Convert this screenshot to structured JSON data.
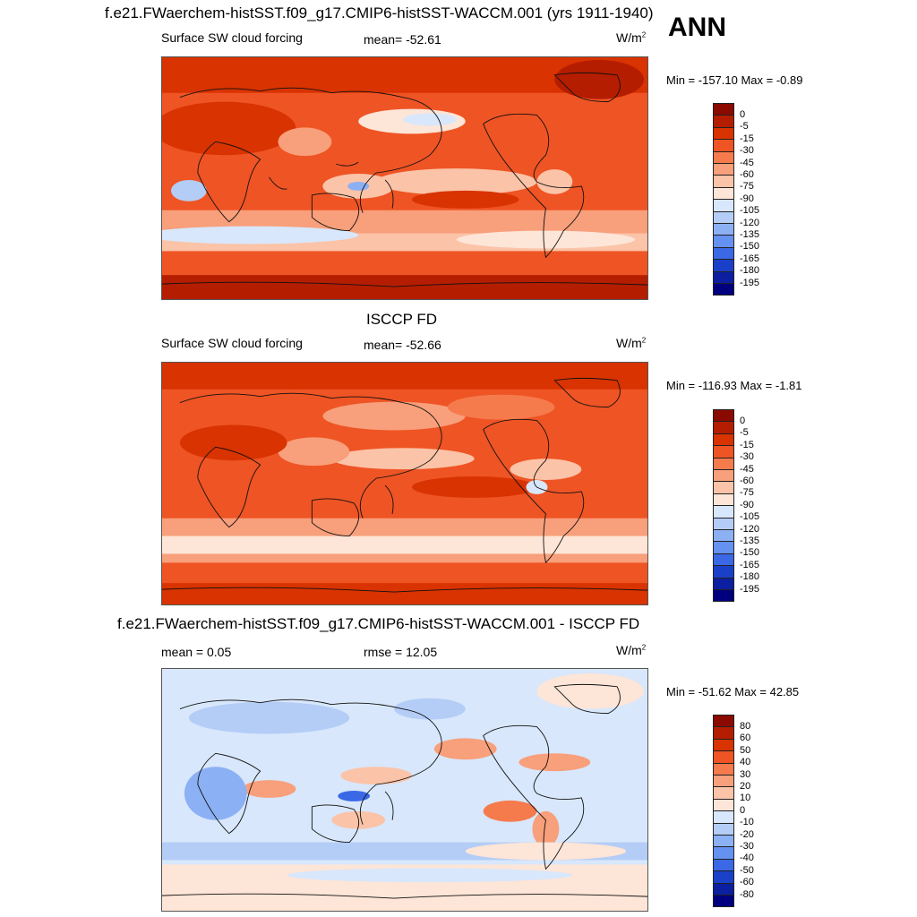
{
  "ann_label": "ANN",
  "panels": [
    {
      "title": "f.e21.FWaerchem-histSST.f09_g17.CMIP6-histSST-WACCM.001 (yrs 1911-1940)",
      "left_label": "Surface SW cloud forcing",
      "center_label": "mean= -52.61",
      "units": "W/m",
      "units_sup": "2",
      "minmax": "Min = -157.10 Max =  -0.89",
      "colorbar": {
        "labels": [
          "0",
          "-5",
          "-15",
          "-30",
          "-45",
          "-60",
          "-75",
          "-90",
          "-105",
          "-120",
          "-135",
          "-150",
          "-165",
          "-180",
          "-195"
        ],
        "colors": [
          "#8b0a00",
          "#b51d00",
          "#d83300",
          "#ef5424",
          "#f57b4d",
          "#f89f7b",
          "#fbc3a7",
          "#fde5d7",
          "#d8e7fb",
          "#b4cdf6",
          "#8cb0f4",
          "#6591f0",
          "#3b69e6",
          "#1b40c8",
          "#0b1fa0",
          "#00007f"
        ]
      }
    },
    {
      "title": "ISCCP FD",
      "left_label": "Surface SW cloud forcing",
      "center_label": "mean= -52.66",
      "units": "W/m",
      "units_sup": "2",
      "minmax": "Min = -116.93 Max =  -1.81",
      "colorbar": {
        "labels": [
          "0",
          "-5",
          "-15",
          "-30",
          "-45",
          "-60",
          "-75",
          "-90",
          "-105",
          "-120",
          "-135",
          "-150",
          "-165",
          "-180",
          "-195"
        ],
        "colors": [
          "#8b0a00",
          "#b51d00",
          "#d83300",
          "#ef5424",
          "#f57b4d",
          "#f89f7b",
          "#fbc3a7",
          "#fde5d7",
          "#d8e7fb",
          "#b4cdf6",
          "#8cb0f4",
          "#6591f0",
          "#3b69e6",
          "#1b40c8",
          "#0b1fa0",
          "#00007f"
        ]
      }
    },
    {
      "title": "f.e21.FWaerchem-histSST.f09_g17.CMIP6-histSST-WACCM.001 - ISCCP FD",
      "left_label": "mean =   0.05",
      "center_label": "rmse =  12.05",
      "units": "W/m",
      "units_sup": "2",
      "minmax": "Min = -51.62 Max =  42.85",
      "colorbar": {
        "labels": [
          "80",
          "60",
          "50",
          "40",
          "30",
          "20",
          "10",
          "0",
          "-10",
          "-20",
          "-30",
          "-40",
          "-50",
          "-60",
          "-80"
        ],
        "colors": [
          "#8b0a00",
          "#b51d00",
          "#d83300",
          "#ef5424",
          "#f57b4d",
          "#f89f7b",
          "#fbc3a7",
          "#fde5d7",
          "#d8e7fb",
          "#b4cdf6",
          "#8cb0f4",
          "#6591f0",
          "#3b69e6",
          "#1b40c8",
          "#0b1fa0",
          "#00007f"
        ]
      }
    }
  ]
}
